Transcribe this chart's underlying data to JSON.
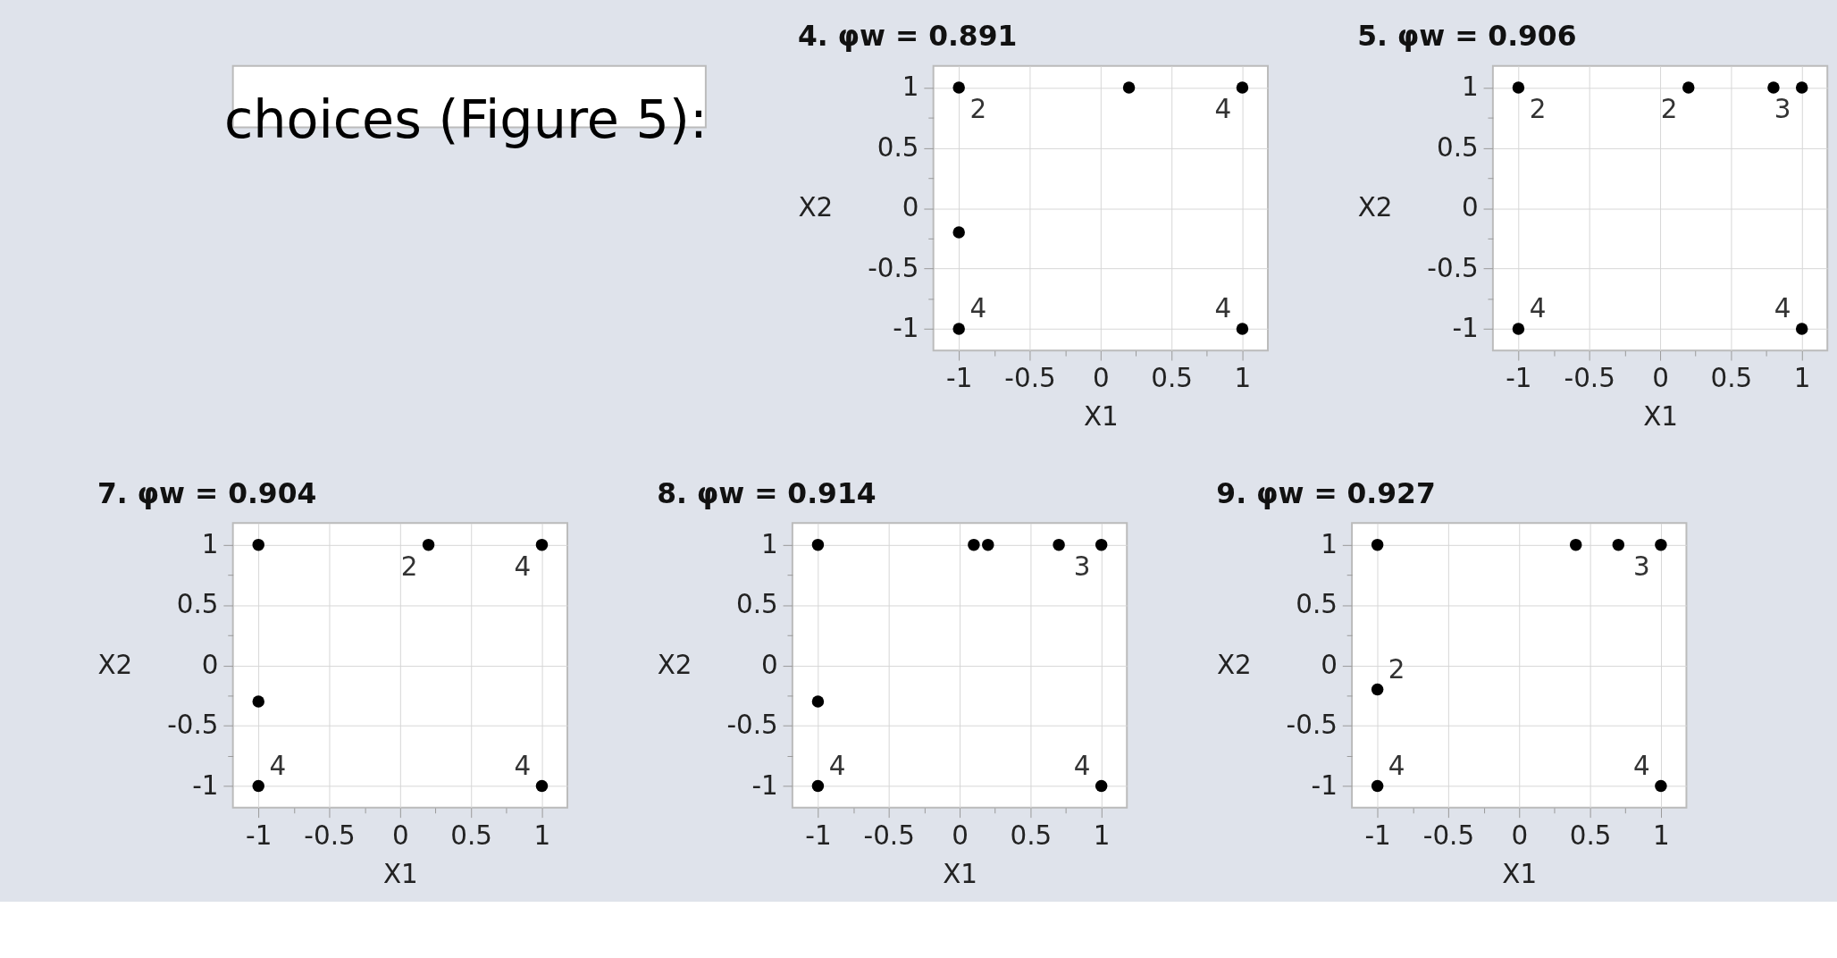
{
  "chart_data": [
    {
      "type": "other",
      "annotations": [
        "choices (Figure 5):"
      ]
    },
    {
      "type": "scatter",
      "title": "4. φw = 0.891",
      "xlabel": "X1",
      "ylabel": "X2",
      "marker": "circle",
      "grid": true,
      "xlim": [
        -1.18,
        1.18
      ],
      "ylim": [
        -1.18,
        1.18
      ],
      "xticks": [
        -1,
        {
          "value": -0.75,
          "label": null
        },
        -0.5,
        {
          "value": -0.25,
          "label": null
        },
        0,
        {
          "value": 0.25,
          "label": null
        },
        0.5,
        {
          "value": 0.75,
          "label": null
        },
        1
      ],
      "yticks": [
        -1,
        {
          "value": -0.75,
          "label": null
        },
        -0.5,
        {
          "value": -0.25,
          "label": null
        },
        0,
        {
          "value": 0.25,
          "label": null
        },
        0.5,
        {
          "value": 0.75,
          "label": null
        },
        1
      ],
      "series": [
        {
          "color": "#000000",
          "x": [
            -1,
            0.2,
            1,
            -1,
            -1,
            1
          ],
          "values": [
            1,
            1,
            1,
            -0.2,
            -1,
            -1
          ]
        }
      ],
      "annotations": [
        {
          "text": "2",
          "x": -1,
          "y": 1
        },
        {
          "text": "4",
          "x": 1,
          "y": 1
        },
        {
          "text": "4",
          "x": -1,
          "y": -1
        },
        {
          "text": "4",
          "x": 1,
          "y": -1
        }
      ]
    },
    {
      "type": "scatter",
      "title": "5. φw = 0.906",
      "xlabel": "X1",
      "ylabel": "X2",
      "marker": "circle",
      "grid": true,
      "xlim": [
        -1.18,
        1.18
      ],
      "ylim": [
        -1.18,
        1.18
      ],
      "xticks": [
        -1,
        {
          "value": -0.75,
          "label": null
        },
        -0.5,
        {
          "value": -0.25,
          "label": null
        },
        0,
        {
          "value": 0.25,
          "label": null
        },
        0.5,
        {
          "value": 0.75,
          "label": null
        },
        1
      ],
      "yticks": [
        -1,
        {
          "value": -0.75,
          "label": null
        },
        -0.5,
        {
          "value": -0.25,
          "label": null
        },
        0,
        {
          "value": 0.25,
          "label": null
        },
        0.5,
        {
          "value": 0.75,
          "label": null
        },
        1
      ],
      "series": [
        {
          "color": "#000000",
          "x": [
            -1,
            0.2,
            0.8,
            1,
            -1,
            1
          ],
          "values": [
            1,
            1,
            1,
            1,
            -1,
            -1
          ]
        }
      ],
      "annotations": [
        {
          "text": "2",
          "x": -1,
          "y": 1
        },
        {
          "text": "2",
          "x": 0.2,
          "y": 1
        },
        {
          "text": "3",
          "x": 1,
          "y": 1
        },
        {
          "text": "4",
          "x": -1,
          "y": -1
        },
        {
          "text": "4",
          "x": 1,
          "y": -1
        }
      ]
    },
    {
      "type": "scatter",
      "title": "7. φw = 0.904",
      "xlabel": "X1",
      "ylabel": "X2",
      "marker": "circle",
      "grid": true,
      "xlim": [
        -1.18,
        1.18
      ],
      "ylim": [
        -1.18,
        1.18
      ],
      "xticks": [
        -1,
        {
          "value": -0.75,
          "label": null
        },
        -0.5,
        {
          "value": -0.25,
          "label": null
        },
        0,
        {
          "value": 0.25,
          "label": null
        },
        0.5,
        {
          "value": 0.75,
          "label": null
        },
        1
      ],
      "yticks": [
        -1,
        {
          "value": -0.75,
          "label": null
        },
        -0.5,
        {
          "value": -0.25,
          "label": null
        },
        0,
        {
          "value": 0.25,
          "label": null
        },
        0.5,
        {
          "value": 0.75,
          "label": null
        },
        1
      ],
      "series": [
        {
          "color": "#000000",
          "x": [
            -1,
            0.2,
            1,
            -1,
            -1,
            1
          ],
          "values": [
            1,
            1,
            1,
            -0.3,
            -1,
            -1
          ]
        }
      ],
      "annotations": [
        {
          "text": "2",
          "x": 0.2,
          "y": 1
        },
        {
          "text": "4",
          "x": 1,
          "y": 1
        },
        {
          "text": "4",
          "x": -1,
          "y": -1
        },
        {
          "text": "4",
          "x": 1,
          "y": -1
        }
      ]
    },
    {
      "type": "scatter",
      "title": "8. φw = 0.914",
      "xlabel": "X1",
      "ylabel": "X2",
      "marker": "circle",
      "grid": true,
      "xlim": [
        -1.18,
        1.18
      ],
      "ylim": [
        -1.18,
        1.18
      ],
      "xticks": [
        -1,
        {
          "value": -0.75,
          "label": null
        },
        -0.5,
        {
          "value": -0.25,
          "label": null
        },
        0,
        {
          "value": 0.25,
          "label": null
        },
        0.5,
        {
          "value": 0.75,
          "label": null
        },
        1
      ],
      "yticks": [
        -1,
        {
          "value": -0.75,
          "label": null
        },
        -0.5,
        {
          "value": -0.25,
          "label": null
        },
        0,
        {
          "value": 0.25,
          "label": null
        },
        0.5,
        {
          "value": 0.75,
          "label": null
        },
        1
      ],
      "series": [
        {
          "color": "#000000",
          "x": [
            -1,
            0.1,
            0.2,
            0.7,
            1,
            -1,
            -1,
            1
          ],
          "values": [
            1,
            1,
            1,
            1,
            1,
            -0.3,
            -1,
            -1
          ]
        }
      ],
      "annotations": [
        {
          "text": "3",
          "x": 1,
          "y": 1
        },
        {
          "text": "4",
          "x": -1,
          "y": -1
        },
        {
          "text": "4",
          "x": 1,
          "y": -1
        }
      ]
    },
    {
      "type": "scatter",
      "title": "9. φw = 0.927",
      "xlabel": "X1",
      "ylabel": "X2",
      "marker": "circle",
      "grid": true,
      "xlim": [
        -1.18,
        1.18
      ],
      "ylim": [
        -1.18,
        1.18
      ],
      "xticks": [
        -1,
        {
          "value": -0.75,
          "label": null
        },
        -0.5,
        {
          "value": -0.25,
          "label": null
        },
        0,
        {
          "value": 0.25,
          "label": null
        },
        0.5,
        {
          "value": 0.75,
          "label": null
        },
        1
      ],
      "yticks": [
        -1,
        {
          "value": -0.75,
          "label": null
        },
        -0.5,
        {
          "value": -0.25,
          "label": null
        },
        0,
        {
          "value": 0.25,
          "label": null
        },
        0.5,
        {
          "value": 0.75,
          "label": null
        },
        1
      ],
      "series": [
        {
          "color": "#000000",
          "x": [
            -1,
            0.4,
            0.7,
            1,
            -1,
            -1,
            1
          ],
          "values": [
            1,
            1,
            1,
            1,
            -0.2,
            -1,
            -1
          ]
        }
      ],
      "annotations": [
        {
          "text": "3",
          "x": 1,
          "y": 1
        },
        {
          "text": "2",
          "x": -1,
          "y": -0.2
        },
        {
          "text": "4",
          "x": -1,
          "y": -1
        },
        {
          "text": "4",
          "x": 1,
          "y": -1
        }
      ]
    }
  ]
}
